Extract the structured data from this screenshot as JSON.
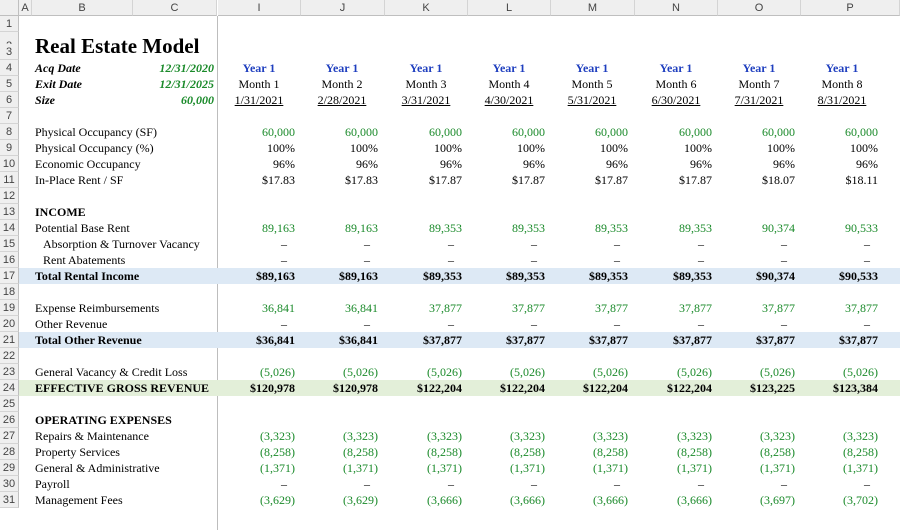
{
  "columns": [
    "A",
    "B",
    "C",
    "I",
    "J",
    "K",
    "L",
    "M",
    "N",
    "O",
    "P"
  ],
  "rows": [
    "1",
    "2",
    "3",
    "4",
    "5",
    "6",
    "7",
    "8",
    "9",
    "10",
    "11",
    "12",
    "13",
    "14",
    "15",
    "16",
    "17",
    "18",
    "19",
    "20",
    "21",
    "22",
    "23",
    "24",
    "25",
    "26",
    "27",
    "28",
    "29",
    "30",
    "31"
  ],
  "title": "Real Estate Model",
  "inputs": [
    {
      "label": "Acq Date",
      "value": "12/31/2020"
    },
    {
      "label": "Exit Date",
      "value": "12/31/2025"
    },
    {
      "label": "Size",
      "value": "60,000"
    }
  ],
  "periods": {
    "year": [
      "Year 1",
      "Year 1",
      "Year 1",
      "Year 1",
      "Year 1",
      "Year 1",
      "Year 1",
      "Year 1"
    ],
    "month": [
      "Month 1",
      "Month 2",
      "Month 3",
      "Month 4",
      "Month 5",
      "Month 6",
      "Month 7",
      "Month 8"
    ],
    "date": [
      "1/31/2021",
      "2/28/2021",
      "3/31/2021",
      "4/30/2021",
      "5/31/2021",
      "6/30/2021",
      "7/31/2021",
      "8/31/2021"
    ]
  },
  "lines": [
    {
      "row": 8,
      "label": "Physical Occupancy (SF)",
      "vals": [
        "60,000",
        "60,000",
        "60,000",
        "60,000",
        "60,000",
        "60,000",
        "60,000",
        "60,000"
      ],
      "color": "green"
    },
    {
      "row": 9,
      "label": "Physical Occupancy (%)",
      "vals": [
        "100%",
        "100%",
        "100%",
        "100%",
        "100%",
        "100%",
        "100%",
        "100%"
      ]
    },
    {
      "row": 10,
      "label": "Economic Occupancy",
      "vals": [
        "96%",
        "96%",
        "96%",
        "96%",
        "96%",
        "96%",
        "96%",
        "96%"
      ]
    },
    {
      "row": 11,
      "label": "In-Place Rent / SF",
      "vals": [
        "$17.83",
        "$17.83",
        "$17.87",
        "$17.87",
        "$17.87",
        "$17.87",
        "$18.07",
        "$18.11"
      ]
    },
    {
      "row": 13,
      "label": "INCOME",
      "header": true
    },
    {
      "row": 14,
      "label": "Potential Base Rent",
      "vals": [
        "89,163",
        "89,163",
        "89,353",
        "89,353",
        "89,353",
        "89,353",
        "90,374",
        "90,533"
      ],
      "color": "green"
    },
    {
      "row": 15,
      "label": "Absorption & Turnover Vacancy",
      "indent": true,
      "vals": [
        "–",
        "–",
        "–",
        "–",
        "–",
        "–",
        "–",
        "–"
      ]
    },
    {
      "row": 16,
      "label": "Rent Abatements",
      "indent": true,
      "vals": [
        "–",
        "–",
        "–",
        "–",
        "–",
        "–",
        "–",
        "–"
      ]
    },
    {
      "row": 17,
      "label": "Total Rental Income",
      "total": "blue",
      "vals": [
        "$89,163",
        "$89,163",
        "$89,353",
        "$89,353",
        "$89,353",
        "$89,353",
        "$90,374",
        "$90,533"
      ]
    },
    {
      "row": 19,
      "label": "Expense Reimbursements",
      "vals": [
        "36,841",
        "36,841",
        "37,877",
        "37,877",
        "37,877",
        "37,877",
        "37,877",
        "37,877"
      ],
      "color": "green"
    },
    {
      "row": 20,
      "label": "Other Revenue",
      "vals": [
        "–",
        "–",
        "–",
        "–",
        "–",
        "–",
        "–",
        "–"
      ]
    },
    {
      "row": 21,
      "label": "Total Other Revenue",
      "total": "blue",
      "vals": [
        "$36,841",
        "$36,841",
        "$37,877",
        "$37,877",
        "$37,877",
        "$37,877",
        "$37,877",
        "$37,877"
      ]
    },
    {
      "row": 23,
      "label": "General Vacancy & Credit Loss",
      "vals": [
        "(5,026)",
        "(5,026)",
        "(5,026)",
        "(5,026)",
        "(5,026)",
        "(5,026)",
        "(5,026)",
        "(5,026)"
      ],
      "color": "green"
    },
    {
      "row": 24,
      "label": "EFFECTIVE GROSS REVENUE",
      "total": "green",
      "vals": [
        "$120,978",
        "$120,978",
        "$122,204",
        "$122,204",
        "$122,204",
        "$122,204",
        "$123,225",
        "$123,384"
      ]
    },
    {
      "row": 26,
      "label": "OPERATING EXPENSES",
      "header": true
    },
    {
      "row": 27,
      "label": "Repairs & Maintenance",
      "vals": [
        "(3,323)",
        "(3,323)",
        "(3,323)",
        "(3,323)",
        "(3,323)",
        "(3,323)",
        "(3,323)",
        "(3,323)"
      ],
      "color": "green"
    },
    {
      "row": 28,
      "label": "Property Services",
      "vals": [
        "(8,258)",
        "(8,258)",
        "(8,258)",
        "(8,258)",
        "(8,258)",
        "(8,258)",
        "(8,258)",
        "(8,258)"
      ],
      "color": "green"
    },
    {
      "row": 29,
      "label": "General & Administrative",
      "vals": [
        "(1,371)",
        "(1,371)",
        "(1,371)",
        "(1,371)",
        "(1,371)",
        "(1,371)",
        "(1,371)",
        "(1,371)"
      ],
      "color": "green"
    },
    {
      "row": 30,
      "label": "Payroll",
      "vals": [
        "–",
        "–",
        "–",
        "–",
        "–",
        "–",
        "–",
        "–"
      ]
    },
    {
      "row": 31,
      "label": "Management Fees",
      "vals": [
        "(3,629)",
        "(3,629)",
        "(3,666)",
        "(3,666)",
        "(3,666)",
        "(3,666)",
        "(3,697)",
        "(3,702)"
      ],
      "color": "green"
    }
  ],
  "colors": {
    "blue_band": "#dde9f5",
    "green_band": "#e3efd9",
    "input_green": "#1a8a2a",
    "year_blue": "#1f3fbf"
  }
}
